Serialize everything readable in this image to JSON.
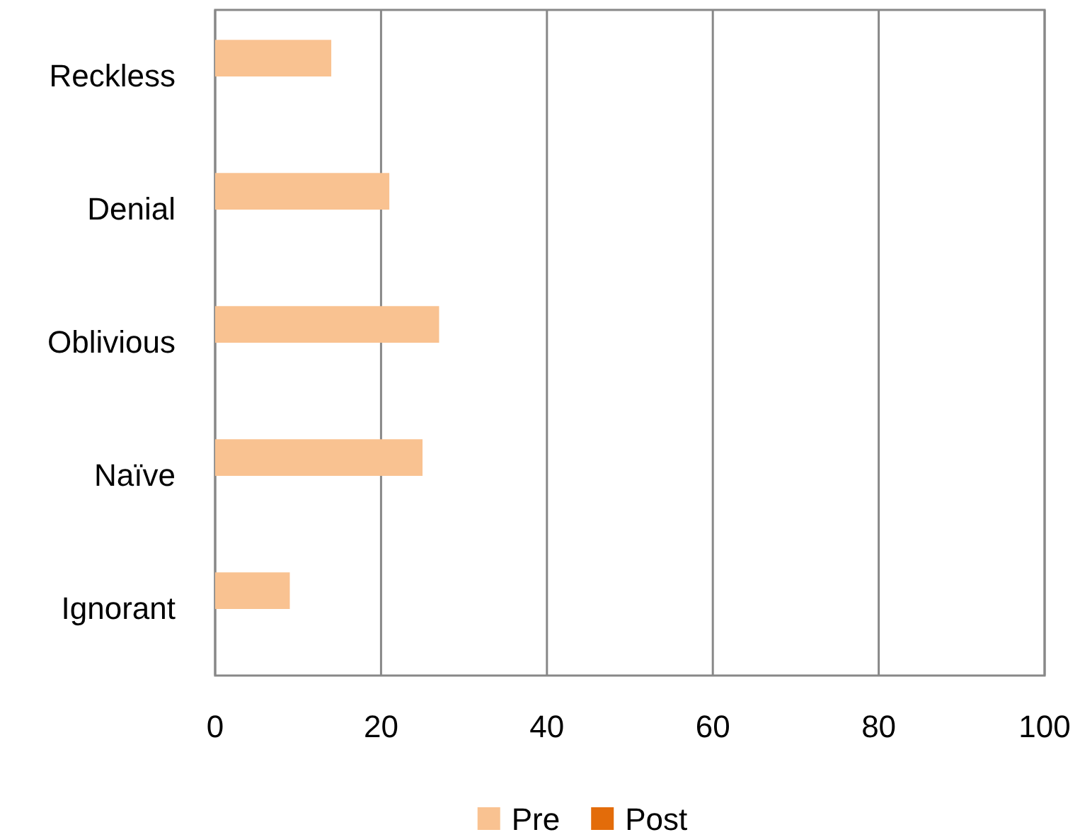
{
  "chart_data": {
    "type": "bar",
    "orientation": "horizontal",
    "categories": [
      "Reckless",
      "Denial",
      "Oblivious",
      "Naïve",
      "Ignorant"
    ],
    "series": [
      {
        "name": "Pre",
        "color": "#f9c291",
        "values": [
          14,
          21,
          27,
          25,
          9
        ]
      },
      {
        "name": "Post",
        "color": "#e36c0a",
        "values": [
          null,
          null,
          null,
          null,
          null
        ]
      }
    ],
    "xlim": [
      0,
      100
    ],
    "xticks": [
      0,
      20,
      40,
      60,
      80,
      100
    ],
    "grid": "x",
    "legend": "bottom"
  }
}
